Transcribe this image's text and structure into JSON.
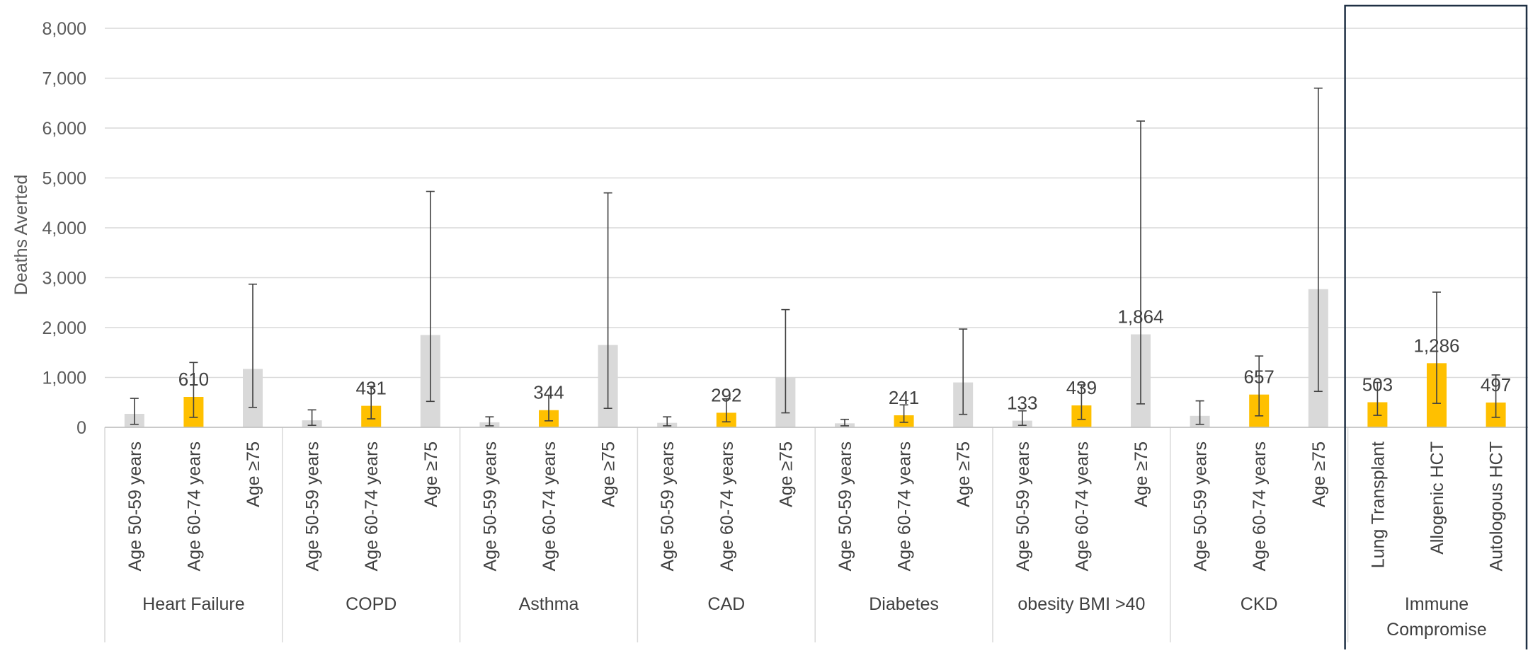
{
  "chart_data": {
    "type": "bar",
    "title": "",
    "ylabel": "Deaths Averted",
    "xlabel": "",
    "ylim": [
      0,
      8000
    ],
    "yticks": [
      0,
      1000,
      2000,
      3000,
      4000,
      5000,
      6000,
      7000,
      8000
    ],
    "ytick_labels": [
      "0",
      "1,000",
      "2,000",
      "3,000",
      "4,000",
      "5,000",
      "6,000",
      "7,000",
      "8,000"
    ],
    "grid": true,
    "colors": {
      "highlight": "#FFC000",
      "muted": "#D9D9D9",
      "frame": "#1F3044"
    },
    "highlighted_group": "Immune Compromise",
    "groups": [
      {
        "name": "Heart Failure",
        "bars": [
          {
            "label": "Age 50-59 years",
            "value": 270,
            "err_low": 60,
            "err_high": 580,
            "highlight": false,
            "data_label": ""
          },
          {
            "label": "Age 60-74 years",
            "value": 610,
            "err_low": 200,
            "err_high": 1300,
            "highlight": true,
            "data_label": "610"
          },
          {
            "label": "Age ≥75",
            "value": 1170,
            "err_low": 400,
            "err_high": 2870,
            "highlight": false,
            "data_label": ""
          }
        ]
      },
      {
        "name": "COPD",
        "bars": [
          {
            "label": "Age 50-59 years",
            "value": 140,
            "err_low": 40,
            "err_high": 350,
            "highlight": false,
            "data_label": ""
          },
          {
            "label": "Age 60-74 years",
            "value": 431,
            "err_low": 170,
            "err_high": 820,
            "highlight": true,
            "data_label": "431"
          },
          {
            "label": "Age ≥75",
            "value": 1850,
            "err_low": 520,
            "err_high": 4730,
            "highlight": false,
            "data_label": ""
          }
        ]
      },
      {
        "name": "Asthma",
        "bars": [
          {
            "label": "Age 50-59 years",
            "value": 100,
            "err_low": 30,
            "err_high": 210,
            "highlight": false,
            "data_label": ""
          },
          {
            "label": "Age 60-74 years",
            "value": 344,
            "err_low": 130,
            "err_high": 640,
            "highlight": true,
            "data_label": "344"
          },
          {
            "label": "Age ≥75",
            "value": 1650,
            "err_low": 380,
            "err_high": 4700,
            "highlight": false,
            "data_label": ""
          }
        ]
      },
      {
        "name": "CAD",
        "bars": [
          {
            "label": "Age 50-59 years",
            "value": 90,
            "err_low": 30,
            "err_high": 210,
            "highlight": false,
            "data_label": ""
          },
          {
            "label": "Age 60-74 years",
            "value": 292,
            "err_low": 110,
            "err_high": 570,
            "highlight": true,
            "data_label": "292"
          },
          {
            "label": "Age ≥75",
            "value": 1000,
            "err_low": 290,
            "err_high": 2360,
            "highlight": false,
            "data_label": ""
          }
        ]
      },
      {
        "name": "Diabetes",
        "bars": [
          {
            "label": "Age 50-59 years",
            "value": 80,
            "err_low": 30,
            "err_high": 160,
            "highlight": false,
            "data_label": ""
          },
          {
            "label": "Age 60-74 years",
            "value": 241,
            "err_low": 100,
            "err_high": 450,
            "highlight": true,
            "data_label": "241"
          },
          {
            "label": "Age ≥75",
            "value": 900,
            "err_low": 260,
            "err_high": 1970,
            "highlight": false,
            "data_label": ""
          }
        ]
      },
      {
        "name": "obesity BMI >40",
        "bars": [
          {
            "label": "Age 50-59 years",
            "value": 133,
            "err_low": 40,
            "err_high": 330,
            "highlight": false,
            "data_label": "133"
          },
          {
            "label": "Age 60-74 years",
            "value": 439,
            "err_low": 160,
            "err_high": 850,
            "highlight": true,
            "data_label": "439"
          },
          {
            "label": "Age ≥75",
            "value": 1864,
            "err_low": 470,
            "err_high": 6140,
            "highlight": false,
            "data_label": "1,864"
          }
        ]
      },
      {
        "name": "CKD",
        "bars": [
          {
            "label": "Age 50-59 years",
            "value": 230,
            "err_low": 60,
            "err_high": 530,
            "highlight": false,
            "data_label": ""
          },
          {
            "label": "Age 60-74 years",
            "value": 657,
            "err_low": 230,
            "err_high": 1430,
            "highlight": true,
            "data_label": "657"
          },
          {
            "label": "Age ≥75",
            "value": 2770,
            "err_low": 720,
            "err_high": 6800,
            "highlight": false,
            "data_label": ""
          }
        ]
      },
      {
        "name": "Immune Compromise",
        "bars": [
          {
            "label": "Lung Transplant",
            "value": 503,
            "err_low": 240,
            "err_high": 900,
            "highlight": true,
            "data_label": "503"
          },
          {
            "label": "Allogenic HCT",
            "value": 1286,
            "err_low": 480,
            "err_high": 2710,
            "highlight": true,
            "data_label": "1,286"
          },
          {
            "label": "Autologous HCT",
            "value": 497,
            "err_low": 200,
            "err_high": 1050,
            "highlight": true,
            "data_label": "497"
          }
        ]
      }
    ]
  }
}
